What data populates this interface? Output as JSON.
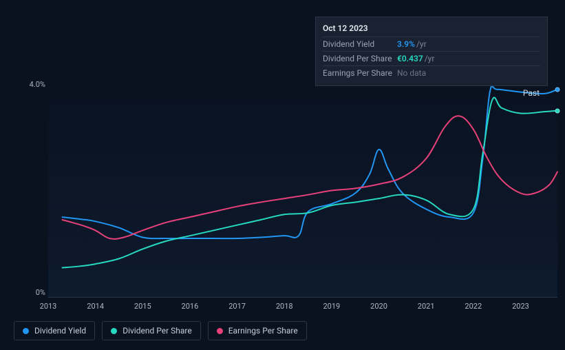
{
  "chart": {
    "type": "line",
    "background_color": "#0a1220",
    "plot_gradient_top": "rgba(10,20,40,0)",
    "plot_gradient_bottom": "rgba(20,40,70,0.35)",
    "grid_color": "#2a3548",
    "text_color": "#aeb6c2",
    "line_width": 2,
    "y_axis": {
      "min": 0,
      "max": 4.0,
      "ticks": [
        {
          "value": 0,
          "label": "0%"
        },
        {
          "value": 4.0,
          "label": "4.0%"
        }
      ],
      "label_fontsize": 11
    },
    "x_axis": {
      "min": 2013,
      "max": 2023.78,
      "ticks": [
        2013,
        2014,
        2015,
        2016,
        2017,
        2018,
        2019,
        2020,
        2021,
        2022,
        2023
      ],
      "label_fontsize": 11
    },
    "past_label": "Past",
    "series": [
      {
        "id": "dividend_yield",
        "label": "Dividend Yield",
        "color": "#2196f3",
        "points": [
          [
            2013.3,
            1.5
          ],
          [
            2013.7,
            1.46
          ],
          [
            2014.0,
            1.42
          ],
          [
            2014.5,
            1.3
          ],
          [
            2015.0,
            1.12
          ],
          [
            2015.5,
            1.1
          ],
          [
            2016.0,
            1.1
          ],
          [
            2016.5,
            1.1
          ],
          [
            2017.0,
            1.1
          ],
          [
            2017.5,
            1.12
          ],
          [
            2018.0,
            1.15
          ],
          [
            2018.3,
            1.15
          ],
          [
            2018.5,
            1.6
          ],
          [
            2019.0,
            1.75
          ],
          [
            2019.5,
            1.95
          ],
          [
            2019.8,
            2.3
          ],
          [
            2020.0,
            2.77
          ],
          [
            2020.2,
            2.4
          ],
          [
            2020.5,
            1.95
          ],
          [
            2021.0,
            1.65
          ],
          [
            2021.5,
            1.5
          ],
          [
            2022.0,
            1.58
          ],
          [
            2022.2,
            2.6
          ],
          [
            2022.35,
            3.85
          ],
          [
            2022.5,
            3.9
          ],
          [
            2023.0,
            3.85
          ],
          [
            2023.5,
            3.82
          ],
          [
            2023.78,
            3.9
          ]
        ]
      },
      {
        "id": "dividend_per_share",
        "label": "Dividend Per Share",
        "color": "#26d9c0",
        "points": [
          [
            2013.3,
            0.55
          ],
          [
            2013.7,
            0.58
          ],
          [
            2014.0,
            0.62
          ],
          [
            2014.5,
            0.72
          ],
          [
            2015.0,
            0.9
          ],
          [
            2015.5,
            1.05
          ],
          [
            2016.0,
            1.15
          ],
          [
            2016.5,
            1.25
          ],
          [
            2017.0,
            1.35
          ],
          [
            2017.5,
            1.45
          ],
          [
            2018.0,
            1.55
          ],
          [
            2018.5,
            1.58
          ],
          [
            2019.0,
            1.72
          ],
          [
            2019.5,
            1.78
          ],
          [
            2020.0,
            1.85
          ],
          [
            2020.5,
            1.92
          ],
          [
            2021.0,
            1.82
          ],
          [
            2021.5,
            1.55
          ],
          [
            2022.0,
            1.65
          ],
          [
            2022.2,
            2.7
          ],
          [
            2022.4,
            3.7
          ],
          [
            2022.6,
            3.55
          ],
          [
            2023.0,
            3.45
          ],
          [
            2023.5,
            3.48
          ],
          [
            2023.78,
            3.5
          ]
        ]
      },
      {
        "id": "earnings_per_share",
        "label": "Earnings Per Share",
        "color": "#e8417a",
        "points": [
          [
            2013.3,
            1.45
          ],
          [
            2013.7,
            1.35
          ],
          [
            2014.0,
            1.25
          ],
          [
            2014.3,
            1.1
          ],
          [
            2014.6,
            1.12
          ],
          [
            2015.0,
            1.25
          ],
          [
            2015.5,
            1.4
          ],
          [
            2016.0,
            1.5
          ],
          [
            2016.5,
            1.6
          ],
          [
            2017.0,
            1.7
          ],
          [
            2017.5,
            1.78
          ],
          [
            2018.0,
            1.85
          ],
          [
            2018.5,
            1.92
          ],
          [
            2019.0,
            2.0
          ],
          [
            2019.5,
            2.04
          ],
          [
            2020.0,
            2.12
          ],
          [
            2020.5,
            2.25
          ],
          [
            2021.0,
            2.6
          ],
          [
            2021.4,
            3.2
          ],
          [
            2021.7,
            3.4
          ],
          [
            2022.0,
            3.15
          ],
          [
            2022.3,
            2.6
          ],
          [
            2022.6,
            2.2
          ],
          [
            2023.0,
            1.95
          ],
          [
            2023.3,
            1.95
          ],
          [
            2023.6,
            2.1
          ],
          [
            2023.78,
            2.35
          ]
        ]
      }
    ]
  },
  "tooltip": {
    "date": "Oct 12 2023",
    "rows": [
      {
        "label": "Dividend Yield",
        "value": "3.9%",
        "unit": "/yr",
        "accent_color": "#2196f3"
      },
      {
        "label": "Dividend Per Share",
        "value": "€0.437",
        "unit": "/yr",
        "accent_color": "#26d9c0"
      },
      {
        "label": "Earnings Per Share",
        "value": "No data",
        "nodata": true
      }
    ]
  },
  "legend": {
    "items": [
      {
        "label": "Dividend Yield",
        "color": "#2196f3"
      },
      {
        "label": "Dividend Per Share",
        "color": "#26d9c0"
      },
      {
        "label": "Earnings Per Share",
        "color": "#e8417a"
      }
    ]
  }
}
